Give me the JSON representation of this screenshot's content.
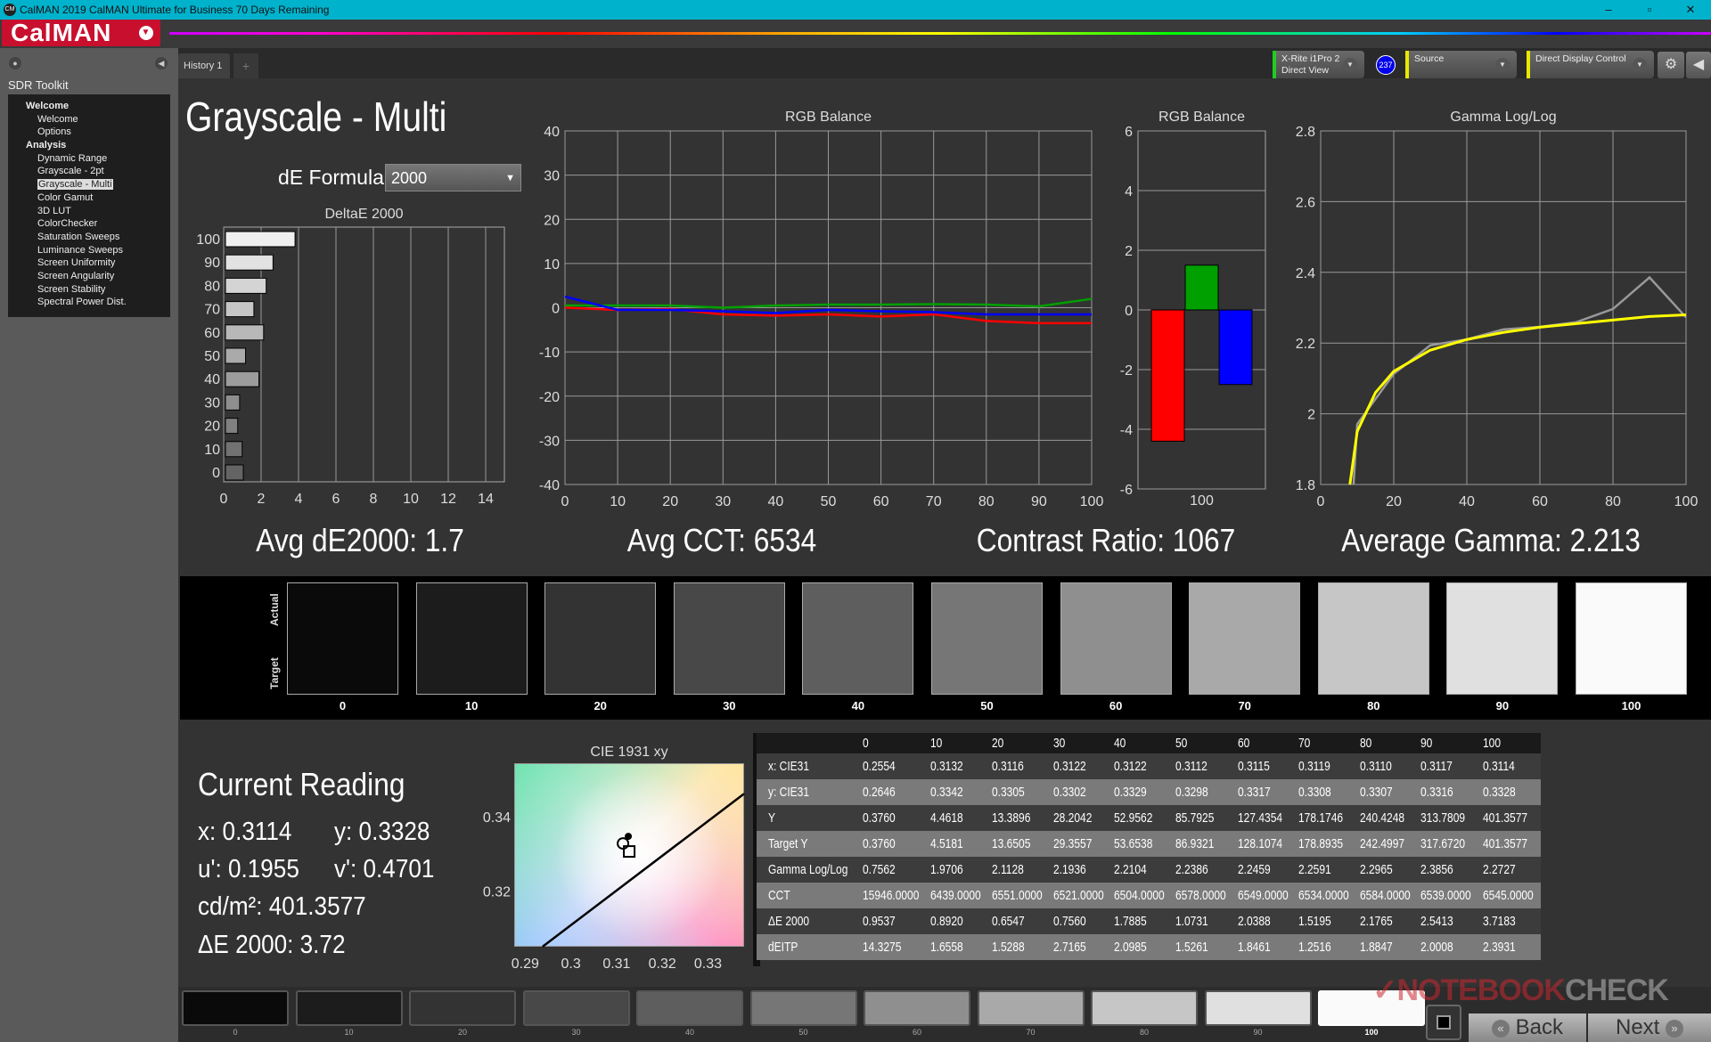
{
  "window": {
    "title": "CalMAN 2019 CalMAN Ultimate for Business 70 Days Remaining",
    "app_icon": "CM",
    "logo": "CalMAN"
  },
  "sidebar": {
    "title": "SDR Toolkit",
    "groups": [
      {
        "label": "Welcome",
        "items": [
          "Welcome",
          "Options"
        ]
      },
      {
        "label": "Analysis",
        "items": [
          "Dynamic Range",
          "Grayscale - 2pt",
          "Grayscale - Multi",
          "Color Gamut",
          "3D LUT",
          "ColorChecker",
          "Saturation Sweeps",
          "Luminance Sweeps",
          "Screen Uniformity",
          "Screen Angularity",
          "Screen Stability",
          "Spectral Power Dist."
        ]
      }
    ],
    "selected": "Grayscale - Multi"
  },
  "tabs": [
    {
      "label": "History 1"
    }
  ],
  "devices": {
    "meter_line1": "X-Rite i1Pro 2",
    "meter_line2": "Direct View",
    "meter_badge": "237",
    "source": "Source",
    "display": "Direct Display Control",
    "meter_color": "#22cc22",
    "source_color": "#e8e800",
    "display_color": "#e8e800"
  },
  "page": {
    "title": "Grayscale - Multi",
    "de_formula_label": "dE Formula:",
    "de_formula_value": "2000"
  },
  "summary": {
    "avg_de": "Avg dE2000: 1.7",
    "avg_cct": "Avg CCT: 6534",
    "contrast": "Contrast Ratio: 1067",
    "avg_gamma": "Average Gamma: 2.213"
  },
  "chart_data": [
    {
      "type": "bar",
      "orientation": "horizontal",
      "title": "DeltaE 2000",
      "categories": [
        "0",
        "10",
        "20",
        "30",
        "40",
        "50",
        "60",
        "70",
        "80",
        "90",
        "100"
      ],
      "values": [
        0.9537,
        0.892,
        0.6547,
        0.756,
        1.7885,
        1.0731,
        2.0388,
        1.5195,
        2.1765,
        2.5413,
        3.7183
      ],
      "xlim": [
        0,
        15
      ],
      "xticks": [
        "0",
        "2",
        "4",
        "6",
        "8",
        "10",
        "12",
        "14"
      ],
      "grid": true
    },
    {
      "type": "line",
      "title": "RGB Balance",
      "x": [
        0,
        10,
        20,
        30,
        40,
        50,
        60,
        70,
        80,
        90,
        100
      ],
      "ylim": [
        -40,
        40
      ],
      "xticks": [
        "0",
        "10",
        "20",
        "30",
        "40",
        "50",
        "60",
        "70",
        "80",
        "90",
        "100"
      ],
      "yticks": [
        "40",
        "30",
        "20",
        "10",
        "0",
        "-10",
        "-20",
        "-30",
        "-40"
      ],
      "grid": true,
      "series": [
        {
          "color": "#ff0000",
          "values": [
            0,
            -0.5,
            -0.3,
            -1.5,
            -1.8,
            -1.5,
            -2,
            -1.5,
            -3,
            -3.5,
            -3.5
          ]
        },
        {
          "color": "#00a000",
          "values": [
            0.5,
            0.5,
            0.5,
            0,
            0.5,
            0.7,
            0.7,
            0.8,
            0.7,
            0.3,
            2
          ]
        },
        {
          "color": "#0000ff",
          "values": [
            2.5,
            -0.5,
            -0.5,
            -0.8,
            -1.2,
            -0.5,
            -0.8,
            -1,
            -1.5,
            -1.5,
            -1.5
          ]
        }
      ]
    },
    {
      "type": "bar",
      "title": "RGB Balance",
      "categories": [
        "100"
      ],
      "ylim": [
        -6,
        6
      ],
      "yticks": [
        "6",
        "4",
        "2",
        "0",
        "-2",
        "-4",
        "-6"
      ],
      "series": [
        {
          "color": "#ff0000",
          "values": [
            -4.4
          ]
        },
        {
          "color": "#00a000",
          "values": [
            1.5
          ]
        },
        {
          "color": "#0000ff",
          "values": [
            -2.5
          ]
        }
      ]
    },
    {
      "type": "line",
      "title": "Gamma Log/Log",
      "xlim": [
        0,
        100
      ],
      "ylim": [
        1.8,
        2.8
      ],
      "xticks": [
        "0",
        "20",
        "40",
        "60",
        "80",
        "100"
      ],
      "yticks": [
        "2.8",
        "2.6",
        "2.4",
        "2.2",
        "2",
        "1.8"
      ],
      "grid": true,
      "series": [
        {
          "color": "#999999",
          "x": [
            9,
            10,
            20,
            30,
            40,
            50,
            60,
            70,
            80,
            90,
            100
          ],
          "values": [
            1.8,
            1.9706,
            2.1128,
            2.1936,
            2.2104,
            2.2386,
            2.2459,
            2.2591,
            2.2965,
            2.3856,
            2.2727
          ]
        },
        {
          "color": "#ffff00",
          "x": [
            8,
            10,
            15,
            20,
            30,
            40,
            50,
            60,
            70,
            80,
            90,
            100
          ],
          "values": [
            1.8,
            1.95,
            2.06,
            2.12,
            2.18,
            2.21,
            2.23,
            2.245,
            2.255,
            2.265,
            2.275,
            2.28
          ]
        }
      ]
    },
    {
      "type": "scatter",
      "title": "CIE 1931 xy",
      "xlim": [
        0.2876,
        0.3379
      ],
      "ylim": [
        0.305,
        0.3544
      ],
      "xticks": [
        "0.29",
        "0.3",
        "0.31",
        "0.32",
        "0.33"
      ],
      "yticks": [
        "0.34",
        "0.32"
      ],
      "points": [
        {
          "x": 0.3114,
          "y": 0.3328
        }
      ],
      "locus": [
        [
          0.2938,
          0.305
        ],
        [
          0.3379,
          0.3462
        ]
      ]
    }
  ],
  "swatches": {
    "actual_label": "Actual",
    "target_label": "Target",
    "items": [
      {
        "label": "0",
        "color": "#0a0a0a"
      },
      {
        "label": "10",
        "color": "#1c1c1c"
      },
      {
        "label": "20",
        "color": "#333333"
      },
      {
        "label": "30",
        "color": "#484848"
      },
      {
        "label": "40",
        "color": "#5e5e5e"
      },
      {
        "label": "50",
        "color": "#767676"
      },
      {
        "label": "60",
        "color": "#8f8f8f"
      },
      {
        "label": "70",
        "color": "#a9a9a9"
      },
      {
        "label": "80",
        "color": "#c6c6c6"
      },
      {
        "label": "90",
        "color": "#e0e0e0"
      },
      {
        "label": "100",
        "color": "#fafafa"
      }
    ]
  },
  "reading": {
    "title": "Current Reading",
    "x": "x: 0.3114",
    "y": "y: 0.3328",
    "u": "u': 0.1955",
    "v": "v': 0.4701",
    "lum": "cd/m²: 401.3577",
    "de": "ΔE 2000: 3.72"
  },
  "table": {
    "columns": [
      "0",
      "10",
      "20",
      "30",
      "40",
      "50",
      "60",
      "70",
      "80",
      "90",
      "100"
    ],
    "rows": [
      {
        "label": "x: CIE31",
        "values": [
          "0.2554",
          "0.3132",
          "0.3116",
          "0.3122",
          "0.3122",
          "0.3112",
          "0.3115",
          "0.3119",
          "0.3110",
          "0.3117",
          "0.3114"
        ]
      },
      {
        "label": "y: CIE31",
        "values": [
          "0.2646",
          "0.3342",
          "0.3305",
          "0.3302",
          "0.3329",
          "0.3298",
          "0.3317",
          "0.3308",
          "0.3307",
          "0.3316",
          "0.3328"
        ]
      },
      {
        "label": "Y",
        "values": [
          "0.3760",
          "4.4618",
          "13.3896",
          "28.2042",
          "52.9562",
          "85.7925",
          "127.4354",
          "178.1746",
          "240.4248",
          "313.7809",
          "401.3577"
        ]
      },
      {
        "label": "Target Y",
        "values": [
          "0.3760",
          "4.5181",
          "13.6505",
          "29.3557",
          "53.6538",
          "86.9321",
          "128.1074",
          "178.8935",
          "242.4997",
          "317.6720",
          "401.3577"
        ]
      },
      {
        "label": "Gamma Log/Log",
        "values": [
          "0.7562",
          "1.9706",
          "2.1128",
          "2.1936",
          "2.2104",
          "2.2386",
          "2.2459",
          "2.2591",
          "2.2965",
          "2.3856",
          "2.2727"
        ]
      },
      {
        "label": "CCT",
        "values": [
          "15946.0000",
          "6439.0000",
          "6551.0000",
          "6521.0000",
          "6504.0000",
          "6578.0000",
          "6549.0000",
          "6534.0000",
          "6584.0000",
          "6539.0000",
          "6545.0000"
        ]
      },
      {
        "label": "ΔE 2000",
        "values": [
          "0.9537",
          "0.8920",
          "0.6547",
          "0.7560",
          "1.7885",
          "1.0731",
          "2.0388",
          "1.5195",
          "2.1765",
          "2.5413",
          "3.7183"
        ]
      },
      {
        "label": "dEITP",
        "values": [
          "14.3275",
          "1.6558",
          "1.5288",
          "2.7165",
          "2.0985",
          "1.5261",
          "1.8461",
          "1.2516",
          "1.8847",
          "2.0008",
          "2.3931"
        ]
      }
    ]
  },
  "bottom": {
    "selected": "100",
    "back": "Back",
    "next": "Next",
    "watermark": "NOTEBOOKCHECK"
  }
}
